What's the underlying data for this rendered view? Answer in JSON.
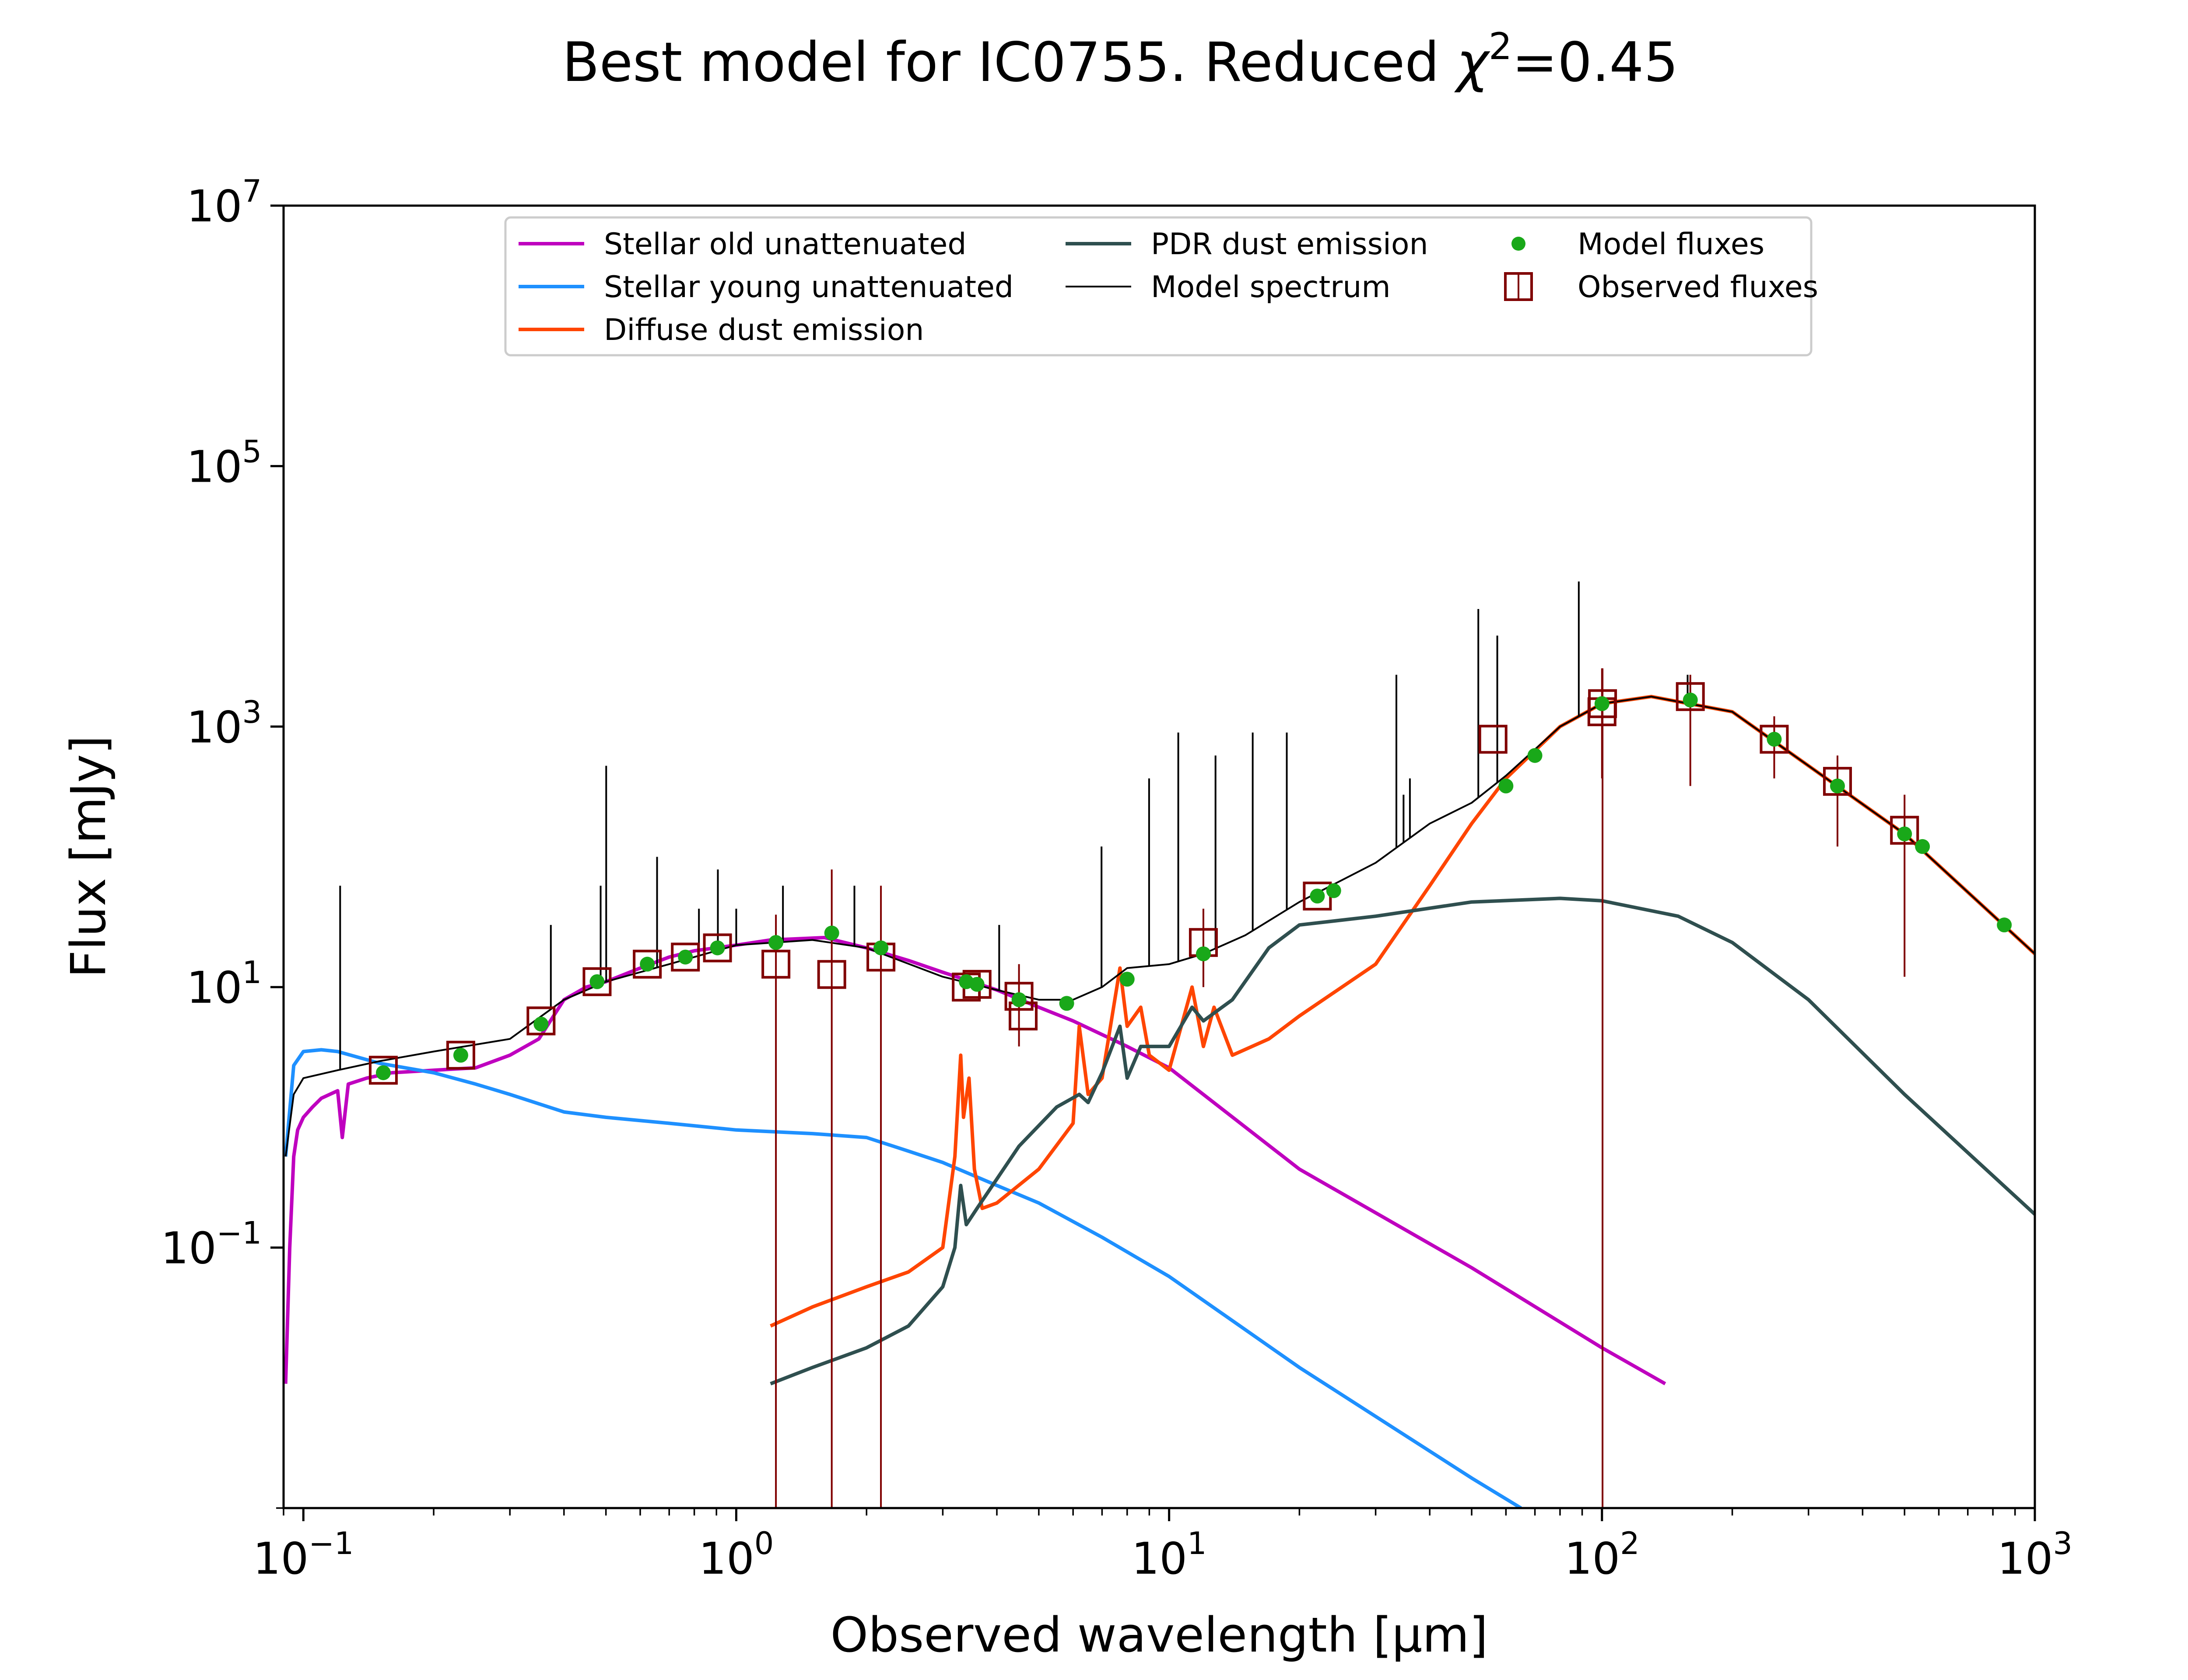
{
  "chart_data": {
    "type": "line",
    "title": "Best model for IC0755. Reduced χ²=0.45",
    "title_parts": {
      "prefix": "Best model for IC0755. Reduced ",
      "chi": "χ",
      "sup": "2",
      "suffix": "=0.45"
    },
    "xlabel": "Observed wavelength [μm]",
    "ylabel": "Flux [mJy]",
    "xscale": "log",
    "yscale": "log",
    "xlim": [
      0.09,
      1000
    ],
    "ylim": [
      0.001,
      10000000
    ],
    "x_ticks": [
      {
        "value": 0.1,
        "base": "10",
        "exp": "−1"
      },
      {
        "value": 1,
        "base": "10",
        "exp": "0"
      },
      {
        "value": 10,
        "base": "10",
        "exp": "1"
      },
      {
        "value": 100,
        "base": "10",
        "exp": "2"
      },
      {
        "value": 1000,
        "base": "10",
        "exp": "3"
      }
    ],
    "y_ticks": [
      {
        "value": 0.1,
        "base": "10",
        "exp": "−1"
      },
      {
        "value": 10,
        "base": "10",
        "exp": "1"
      },
      {
        "value": 1000,
        "base": "10",
        "exp": "3"
      },
      {
        "value": 100000,
        "base": "10",
        "exp": "5"
      },
      {
        "value": 10000000,
        "base": "10",
        "exp": "7"
      }
    ],
    "grid": false,
    "legend_position": "top-center",
    "legend": [
      {
        "label": "Stellar old unattenuated",
        "kind": "line",
        "color": "#bf00bf"
      },
      {
        "label": "Stellar young unattenuated",
        "kind": "line",
        "color": "#1e90ff"
      },
      {
        "label": "Diffuse dust emission",
        "kind": "line",
        "color": "#ff4500"
      },
      {
        "label": "PDR dust emission",
        "kind": "line",
        "color": "#2f4f4f"
      },
      {
        "label": "Model spectrum",
        "kind": "thinline",
        "color": "#000000"
      },
      {
        "label": "Model fluxes",
        "kind": "dot",
        "color": "#19a819"
      },
      {
        "label": "Observed fluxes",
        "kind": "square",
        "color": "#800000"
      }
    ],
    "series": [
      {
        "name": "Stellar old unattenuated",
        "color": "#bf00bf",
        "points": [
          [
            0.091,
            0.009
          ],
          [
            0.093,
            0.1
          ],
          [
            0.095,
            0.5
          ],
          [
            0.097,
            0.8
          ],
          [
            0.1,
            1.0
          ],
          [
            0.105,
            1.2
          ],
          [
            0.11,
            1.4
          ],
          [
            0.12,
            1.6
          ],
          [
            0.123,
            0.7
          ],
          [
            0.127,
            1.8
          ],
          [
            0.14,
            2.0
          ],
          [
            0.16,
            2.2
          ],
          [
            0.2,
            2.3
          ],
          [
            0.25,
            2.4
          ],
          [
            0.3,
            3.0
          ],
          [
            0.35,
            4.0
          ],
          [
            0.4,
            8.0
          ],
          [
            0.45,
            10
          ],
          [
            0.5,
            11
          ],
          [
            0.6,
            14
          ],
          [
            0.7,
            17
          ],
          [
            0.8,
            19
          ],
          [
            1.0,
            21
          ],
          [
            1.2,
            23
          ],
          [
            1.6,
            24
          ],
          [
            2.0,
            20
          ],
          [
            2.5,
            16
          ],
          [
            3.0,
            13
          ],
          [
            3.5,
            11
          ],
          [
            4.0,
            9.5
          ],
          [
            5.0,
            7.0
          ],
          [
            6.0,
            5.5
          ],
          [
            8.0,
            3.5
          ],
          [
            10,
            2.4
          ],
          [
            20,
            0.4
          ],
          [
            50,
            0.07
          ],
          [
            100,
            0.017
          ],
          [
            140,
            0.009
          ]
        ]
      },
      {
        "name": "Stellar young unattenuated",
        "color": "#1e90ff",
        "points": [
          [
            0.091,
            0.5
          ],
          [
            0.095,
            2.5
          ],
          [
            0.1,
            3.2
          ],
          [
            0.11,
            3.3
          ],
          [
            0.12,
            3.2
          ],
          [
            0.15,
            2.6
          ],
          [
            0.2,
            2.2
          ],
          [
            0.25,
            1.8
          ],
          [
            0.3,
            1.5
          ],
          [
            0.4,
            1.1
          ],
          [
            0.5,
            1.0
          ],
          [
            0.7,
            0.9
          ],
          [
            1.0,
            0.8
          ],
          [
            1.5,
            0.75
          ],
          [
            2.0,
            0.7
          ],
          [
            2.5,
            0.55
          ],
          [
            3.0,
            0.45
          ],
          [
            4.0,
            0.3
          ],
          [
            5.0,
            0.22
          ],
          [
            7.0,
            0.12
          ],
          [
            10,
            0.06
          ],
          [
            20,
            0.012
          ],
          [
            50,
            0.0017
          ],
          [
            65,
            0.001
          ]
        ]
      },
      {
        "name": "Diffuse dust emission",
        "color": "#ff4500",
        "points": [
          [
            1.2,
            0.025
          ],
          [
            1.5,
            0.035
          ],
          [
            2.0,
            0.05
          ],
          [
            2.5,
            0.065
          ],
          [
            3.0,
            0.1
          ],
          [
            3.2,
            0.5
          ],
          [
            3.3,
            3.0
          ],
          [
            3.35,
            1.0
          ],
          [
            3.45,
            2.0
          ],
          [
            3.55,
            0.4
          ],
          [
            3.7,
            0.2
          ],
          [
            4.0,
            0.22
          ],
          [
            5.0,
            0.4
          ],
          [
            6.0,
            0.9
          ],
          [
            6.2,
            5.0
          ],
          [
            6.5,
            1.5
          ],
          [
            7.0,
            2.0
          ],
          [
            7.7,
            14
          ],
          [
            8.0,
            5.0
          ],
          [
            8.6,
            7.0
          ],
          [
            9.0,
            3.0
          ],
          [
            10,
            2.3
          ],
          [
            11.3,
            10
          ],
          [
            12,
            3.5
          ],
          [
            12.7,
            7.0
          ],
          [
            14,
            3.0
          ],
          [
            17,
            4.0
          ],
          [
            20,
            6.0
          ],
          [
            30,
            15
          ],
          [
            40,
            60
          ],
          [
            50,
            180
          ],
          [
            60,
            400
          ],
          [
            80,
            1000
          ],
          [
            100,
            1500
          ],
          [
            130,
            1700
          ],
          [
            200,
            1300
          ],
          [
            300,
            500
          ],
          [
            500,
            150
          ],
          [
            1000,
            18
          ]
        ]
      },
      {
        "name": "PDR dust emission",
        "color": "#2f4f4f",
        "points": [
          [
            1.2,
            0.009
          ],
          [
            1.5,
            0.012
          ],
          [
            2.0,
            0.017
          ],
          [
            2.5,
            0.025
          ],
          [
            3.0,
            0.05
          ],
          [
            3.2,
            0.1
          ],
          [
            3.3,
            0.3
          ],
          [
            3.4,
            0.15
          ],
          [
            3.6,
            0.2
          ],
          [
            4.5,
            0.6
          ],
          [
            5.5,
            1.2
          ],
          [
            6.2,
            1.5
          ],
          [
            6.5,
            1.3
          ],
          [
            7.0,
            2.2
          ],
          [
            7.7,
            5.0
          ],
          [
            8.0,
            2.0
          ],
          [
            8.6,
            3.5
          ],
          [
            10,
            3.5
          ],
          [
            11.3,
            7.0
          ],
          [
            12,
            5.5
          ],
          [
            14,
            8.0
          ],
          [
            17,
            20
          ],
          [
            20,
            30
          ],
          [
            30,
            35
          ],
          [
            50,
            45
          ],
          [
            80,
            48
          ],
          [
            100,
            46
          ],
          [
            150,
            35
          ],
          [
            200,
            22
          ],
          [
            300,
            8.0
          ],
          [
            500,
            1.5
          ],
          [
            1000,
            0.18
          ]
        ]
      },
      {
        "name": "Model spectrum",
        "color": "#000000",
        "points": [
          [
            0.091,
            0.5
          ],
          [
            0.095,
            1.5
          ],
          [
            0.1,
            2.0
          ],
          [
            0.12,
            2.3
          ],
          [
            0.15,
            2.7
          ],
          [
            0.2,
            3.2
          ],
          [
            0.3,
            4.0
          ],
          [
            0.4,
            8.0
          ],
          [
            0.5,
            11
          ],
          [
            0.7,
            15
          ],
          [
            1.0,
            21
          ],
          [
            1.5,
            23
          ],
          [
            2.0,
            20
          ],
          [
            3.0,
            12
          ],
          [
            4.0,
            9.5
          ],
          [
            5.0,
            8.0
          ],
          [
            6.0,
            8.0
          ],
          [
            7.0,
            10
          ],
          [
            8.0,
            14
          ],
          [
            10,
            15
          ],
          [
            12,
            18
          ],
          [
            15,
            25
          ],
          [
            20,
            45
          ],
          [
            30,
            90
          ],
          [
            40,
            180
          ],
          [
            50,
            260
          ],
          [
            60,
            420
          ],
          [
            80,
            1000
          ],
          [
            100,
            1500
          ],
          [
            130,
            1700
          ],
          [
            200,
            1300
          ],
          [
            300,
            500
          ],
          [
            500,
            150
          ],
          [
            1000,
            18
          ]
        ]
      }
    ],
    "emission_lines": [
      {
        "x": 0.1216,
        "peak": 60
      },
      {
        "x": 0.373,
        "peak": 30
      },
      {
        "x": 0.4861,
        "peak": 60
      },
      {
        "x": 0.5007,
        "peak": 500
      },
      {
        "x": 0.6563,
        "peak": 100
      },
      {
        "x": 0.82,
        "peak": 40
      },
      {
        "x": 0.9069,
        "peak": 80
      },
      {
        "x": 1.0,
        "peak": 40
      },
      {
        "x": 1.282,
        "peak": 60
      },
      {
        "x": 1.875,
        "peak": 60
      },
      {
        "x": 4.05,
        "peak": 30
      },
      {
        "x": 6.98,
        "peak": 120
      },
      {
        "x": 8.99,
        "peak": 400
      },
      {
        "x": 10.5,
        "peak": 900
      },
      {
        "x": 12.8,
        "peak": 600
      },
      {
        "x": 15.6,
        "peak": 900
      },
      {
        "x": 18.7,
        "peak": 900
      },
      {
        "x": 33.5,
        "peak": 2500
      },
      {
        "x": 34.8,
        "peak": 300
      },
      {
        "x": 36.0,
        "peak": 400
      },
      {
        "x": 51.8,
        "peak": 8000
      },
      {
        "x": 57.3,
        "peak": 5000
      },
      {
        "x": 88.4,
        "peak": 13000
      },
      {
        "x": 157.7,
        "peak": 2500
      }
    ],
    "model_fluxes": [
      [
        0.153,
        2.2
      ],
      [
        0.231,
        3.0
      ],
      [
        0.354,
        5.2
      ],
      [
        0.477,
        11
      ],
      [
        0.623,
        15
      ],
      [
        0.763,
        17
      ],
      [
        0.905,
        20
      ],
      [
        1.235,
        22
      ],
      [
        1.662,
        26
      ],
      [
        2.159,
        20
      ],
      [
        3.4,
        11
      ],
      [
        3.6,
        10.5
      ],
      [
        4.5,
        8.0
      ],
      [
        5.8,
        7.5
      ],
      [
        8.0,
        11.5
      ],
      [
        12,
        18
      ],
      [
        22,
        50
      ],
      [
        24,
        55
      ],
      [
        60,
        350
      ],
      [
        70,
        600
      ],
      [
        100,
        1500
      ],
      [
        160,
        1600
      ],
      [
        250,
        800
      ],
      [
        350,
        350
      ],
      [
        500,
        150
      ],
      [
        550,
        120
      ],
      [
        850,
        30
      ]
    ],
    "observed_fluxes": [
      {
        "x": 0.153,
        "y": 2.3
      },
      {
        "x": 0.231,
        "y": 3.0
      },
      {
        "x": 0.354,
        "y": 5.5
      },
      {
        "x": 0.477,
        "y": 11
      },
      {
        "x": 0.623,
        "y": 15
      },
      {
        "x": 0.763,
        "y": 17
      },
      {
        "x": 0.905,
        "y": 20
      },
      {
        "x": 1.235,
        "y": 15,
        "lo": 0.001,
        "hi": 36
      },
      {
        "x": 1.662,
        "y": 12.5,
        "lo": 0.001,
        "hi": 80
      },
      {
        "x": 2.159,
        "y": 17,
        "lo": 0.001,
        "hi": 60
      },
      {
        "x": 3.4,
        "y": 10
      },
      {
        "x": 3.6,
        "y": 10.5
      },
      {
        "x": 4.5,
        "y": 8.5,
        "lo": 3.5,
        "hi": 15
      },
      {
        "x": 4.6,
        "y": 6.0
      },
      {
        "x": 12,
        "y": 22,
        "lo": 10,
        "hi": 40
      },
      {
        "x": 22,
        "y": 50
      },
      {
        "x": 56,
        "y": 800
      },
      {
        "x": 100,
        "y": 1300,
        "lo": 400,
        "hi": 2800
      },
      {
        "x": 100.3,
        "y": 1500,
        "lo": 0.001,
        "hi": 2800
      },
      {
        "x": 160,
        "y": 1700,
        "lo": 350,
        "hi": 2500
      },
      {
        "x": 250,
        "y": 800,
        "lo": 400,
        "hi": 1200
      },
      {
        "x": 350,
        "y": 380,
        "lo": 120,
        "hi": 600
      },
      {
        "x": 500,
        "y": 160,
        "lo": 12,
        "hi": 300
      }
    ]
  }
}
